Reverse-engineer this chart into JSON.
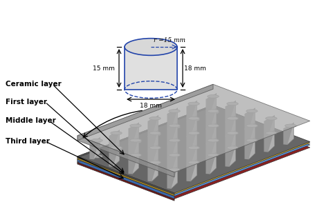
{
  "bg_color": "#ffffff",
  "dim_labels": {
    "radius": "r =15 mm",
    "width": "18 mm",
    "height_left": "15 mm",
    "height_right": "18 mm"
  },
  "labels": [
    "Ceramic layer",
    "First layer",
    "Middle layer",
    "Third layer"
  ],
  "layer_colors": {
    "ceramic_top": "#a0a0a0",
    "ceramic_left": "#888888",
    "ceramic_right": "#989898",
    "cyl_body_light": "#c8c8c8",
    "cyl_body_dark": "#909090",
    "cyl_top": "#b8b8b8",
    "first_top": "#666666",
    "first_left": "#555555",
    "first_right": "#5e5e5e",
    "middle_top": "#5b8fd4",
    "middle_left": "#3a6ab0",
    "middle_right": "#4a7ac0",
    "tan_top": "#c8a832",
    "tan_left": "#a08020",
    "tan_right": "#b09028",
    "red_top": "#8b2020",
    "red_left": "#6a1515",
    "red_right": "#7a1818"
  },
  "figsize": [
    4.74,
    2.93
  ],
  "dpi": 100
}
